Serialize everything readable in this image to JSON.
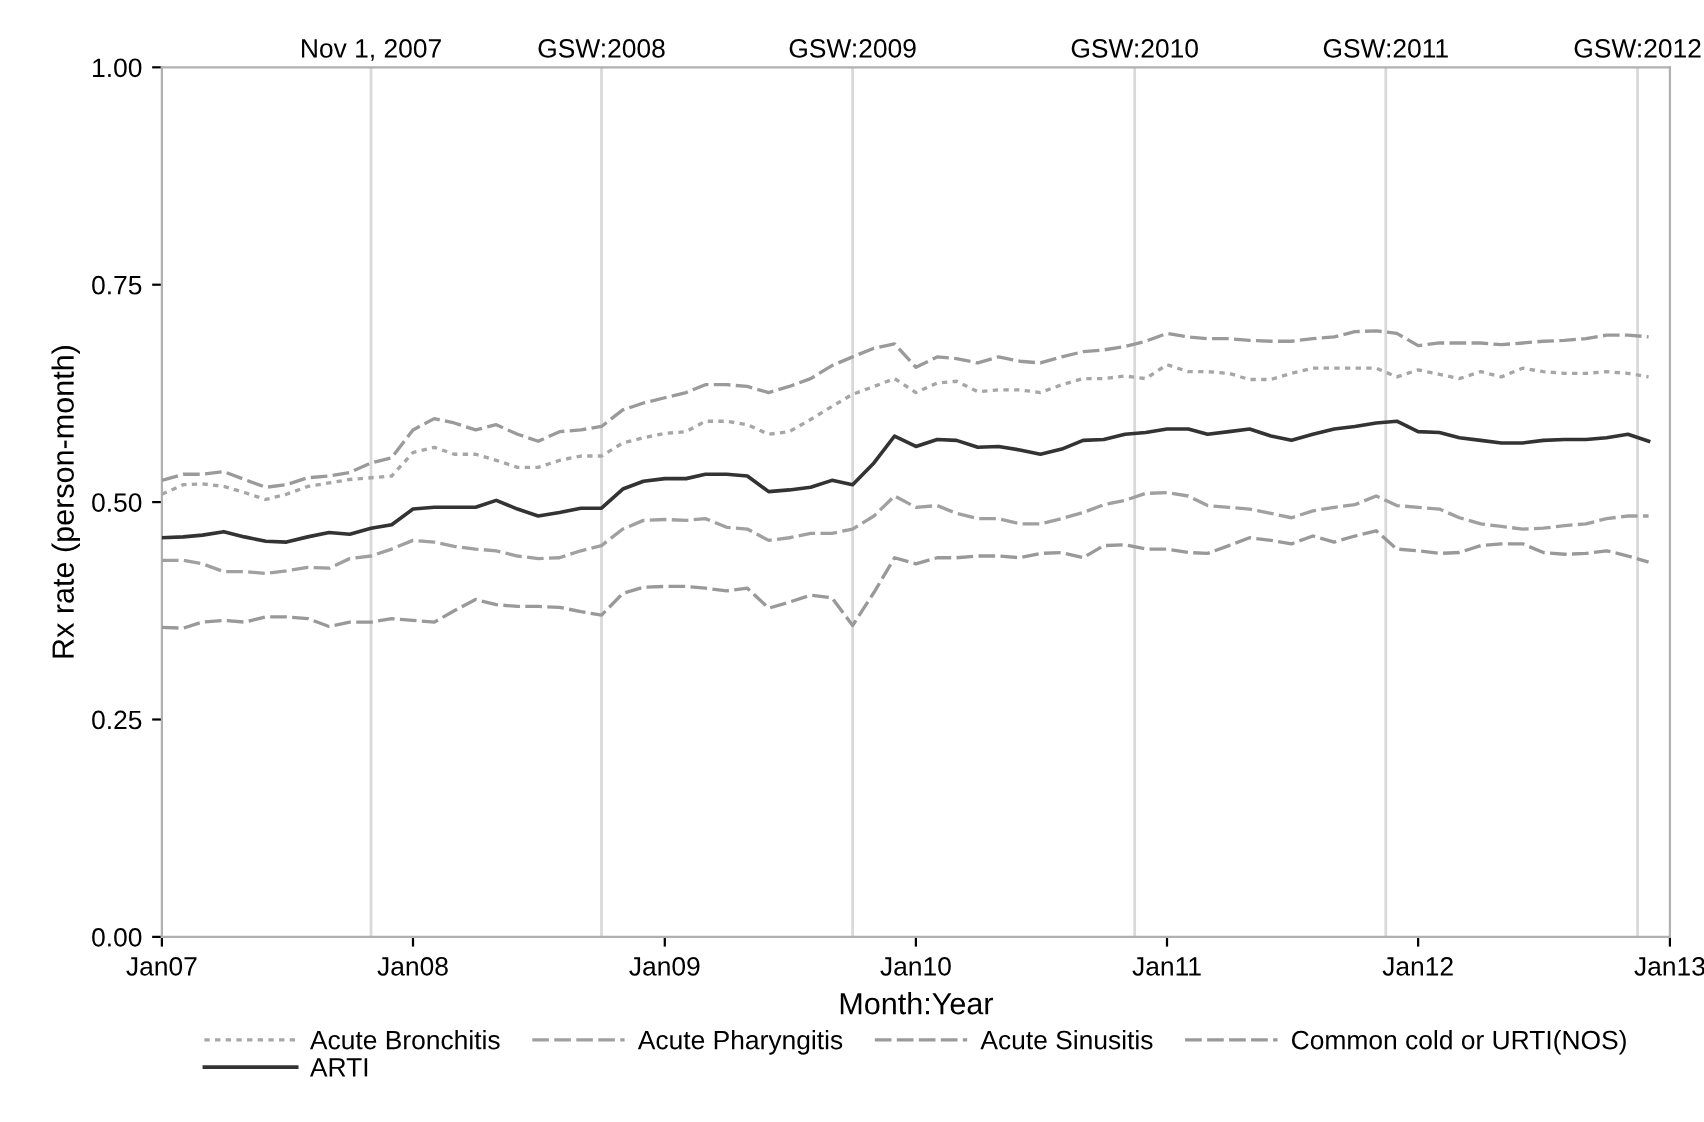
{
  "chart_data": {
    "type": "line",
    "xlabel": "Month:Year",
    "ylabel": "Rx rate (person-month)",
    "x": [
      "2007-01",
      "2007-02",
      "2007-03",
      "2007-04",
      "2007-05",
      "2007-06",
      "2007-07",
      "2007-08",
      "2007-09",
      "2007-10",
      "2007-11",
      "2007-12",
      "2008-01",
      "2008-02",
      "2008-03",
      "2008-04",
      "2008-05",
      "2008-06",
      "2008-07",
      "2008-08",
      "2008-09",
      "2008-10",
      "2008-11",
      "2008-12",
      "2009-01",
      "2009-02",
      "2009-03",
      "2009-04",
      "2009-05",
      "2009-06",
      "2009-07",
      "2009-08",
      "2009-09",
      "2009-10",
      "2009-11",
      "2009-12",
      "2010-01",
      "2010-02",
      "2010-03",
      "2010-04",
      "2010-05",
      "2010-06",
      "2010-07",
      "2010-08",
      "2010-09",
      "2010-10",
      "2010-11",
      "2010-12",
      "2011-01",
      "2011-02",
      "2011-03",
      "2011-04",
      "2011-05",
      "2011-06",
      "2011-07",
      "2011-08",
      "2011-09",
      "2011-10",
      "2011-11",
      "2011-12",
      "2012-01",
      "2012-02",
      "2012-03",
      "2012-04",
      "2012-05",
      "2012-06",
      "2012-07",
      "2012-08",
      "2012-09",
      "2012-10",
      "2012-11",
      "2012-12"
    ],
    "series": [
      {
        "name": "Acute Bronchitis",
        "color": "#a6a6a6",
        "line_style": "dotted",
        "values": [
          0.509,
          0.52,
          0.521,
          0.518,
          0.511,
          0.503,
          0.509,
          0.518,
          0.522,
          0.526,
          0.528,
          0.53,
          0.557,
          0.563,
          0.555,
          0.555,
          0.548,
          0.54,
          0.54,
          0.548,
          0.553,
          0.553,
          0.568,
          0.574,
          0.579,
          0.581,
          0.593,
          0.593,
          0.589,
          0.578,
          0.581,
          0.595,
          0.61,
          0.624,
          0.633,
          0.642,
          0.626,
          0.637,
          0.639,
          0.627,
          0.629,
          0.629,
          0.626,
          0.635,
          0.642,
          0.642,
          0.645,
          0.642,
          0.658,
          0.65,
          0.65,
          0.648,
          0.641,
          0.641,
          0.648,
          0.654,
          0.654,
          0.654,
          0.654,
          0.644,
          0.652,
          0.647,
          0.642,
          0.65,
          0.644,
          0.654,
          0.65,
          0.648,
          0.648,
          0.65,
          0.648,
          0.644
        ]
      },
      {
        "name": "Acute Pharyngitis",
        "color": "#a0a0a0",
        "line_style": "dashed",
        "values": [
          0.433,
          0.433,
          0.429,
          0.42,
          0.42,
          0.418,
          0.421,
          0.425,
          0.424,
          0.435,
          0.438,
          0.446,
          0.456,
          0.454,
          0.449,
          0.446,
          0.444,
          0.438,
          0.435,
          0.436,
          0.444,
          0.45,
          0.469,
          0.479,
          0.48,
          0.479,
          0.481,
          0.471,
          0.469,
          0.456,
          0.459,
          0.464,
          0.464,
          0.469,
          0.484,
          0.507,
          0.494,
          0.496,
          0.487,
          0.481,
          0.481,
          0.475,
          0.475,
          0.481,
          0.488,
          0.497,
          0.502,
          0.51,
          0.511,
          0.507,
          0.496,
          0.494,
          0.492,
          0.487,
          0.482,
          0.49,
          0.494,
          0.497,
          0.507,
          0.496,
          0.494,
          0.492,
          0.482,
          0.475,
          0.472,
          0.469,
          0.47,
          0.473,
          0.475,
          0.481,
          0.484,
          0.484
        ]
      },
      {
        "name": "Acute Sinusitis",
        "color": "#9a9a9a",
        "line_style": "dashed",
        "values": [
          0.525,
          0.532,
          0.532,
          0.535,
          0.526,
          0.517,
          0.52,
          0.528,
          0.53,
          0.534,
          0.545,
          0.551,
          0.583,
          0.596,
          0.591,
          0.583,
          0.589,
          0.578,
          0.57,
          0.581,
          0.583,
          0.587,
          0.606,
          0.614,
          0.62,
          0.626,
          0.635,
          0.635,
          0.633,
          0.626,
          0.633,
          0.642,
          0.657,
          0.667,
          0.677,
          0.682,
          0.655,
          0.667,
          0.665,
          0.66,
          0.667,
          0.662,
          0.66,
          0.667,
          0.673,
          0.675,
          0.679,
          0.685,
          0.694,
          0.69,
          0.688,
          0.688,
          0.686,
          0.685,
          0.685,
          0.688,
          0.69,
          0.696,
          0.697,
          0.694,
          0.68,
          0.683,
          0.683,
          0.683,
          0.681,
          0.683,
          0.685,
          0.686,
          0.688,
          0.692,
          0.692,
          0.69
        ]
      },
      {
        "name": "Common cold or URTI(NOS)",
        "color": "#999999",
        "line_style": "dashed",
        "values": [
          0.356,
          0.355,
          0.362,
          0.364,
          0.362,
          0.368,
          0.368,
          0.366,
          0.357,
          0.362,
          0.362,
          0.366,
          0.364,
          0.362,
          0.375,
          0.388,
          0.382,
          0.38,
          0.38,
          0.379,
          0.374,
          0.37,
          0.395,
          0.402,
          0.403,
          0.403,
          0.401,
          0.398,
          0.401,
          0.378,
          0.385,
          0.393,
          0.39,
          0.358,
          0.396,
          0.436,
          0.429,
          0.436,
          0.436,
          0.438,
          0.438,
          0.436,
          0.441,
          0.442,
          0.436,
          0.45,
          0.451,
          0.446,
          0.446,
          0.442,
          0.441,
          0.45,
          0.459,
          0.456,
          0.452,
          0.461,
          0.454,
          0.461,
          0.467,
          0.446,
          0.444,
          0.441,
          0.442,
          0.45,
          0.452,
          0.452,
          0.442,
          0.44,
          0.441,
          0.444,
          0.438,
          0.431
        ]
      },
      {
        "name": "ARTI",
        "color": "#333333",
        "line_style": "solid",
        "values": [
          0.459,
          0.46,
          0.462,
          0.466,
          0.46,
          0.455,
          0.454,
          0.46,
          0.465,
          0.463,
          0.47,
          0.474,
          0.492,
          0.494,
          0.494,
          0.494,
          0.502,
          0.492,
          0.484,
          0.488,
          0.493,
          0.493,
          0.515,
          0.524,
          0.527,
          0.527,
          0.532,
          0.532,
          0.53,
          0.512,
          0.514,
          0.517,
          0.525,
          0.52,
          0.545,
          0.576,
          0.564,
          0.572,
          0.571,
          0.563,
          0.564,
          0.56,
          0.555,
          0.561,
          0.571,
          0.572,
          0.578,
          0.58,
          0.584,
          0.584,
          0.578,
          0.581,
          0.584,
          0.576,
          0.571,
          0.578,
          0.584,
          0.587,
          0.591,
          0.593,
          0.581,
          0.58,
          0.574,
          0.571,
          0.568,
          0.568,
          0.571,
          0.572,
          0.572,
          0.574,
          0.578,
          0.57
        ]
      }
    ],
    "xlim": [
      "2007-01",
      "2013-01"
    ],
    "xticks": [
      {
        "value": "2007-01",
        "label": "Jan07"
      },
      {
        "value": "2008-01",
        "label": "Jan08"
      },
      {
        "value": "2009-01",
        "label": "Jan09"
      },
      {
        "value": "2010-01",
        "label": "Jan10"
      },
      {
        "value": "2011-01",
        "label": "Jan11"
      },
      {
        "value": "2012-01",
        "label": "Jan12"
      },
      {
        "value": "2013-01",
        "label": "Jan13"
      }
    ],
    "ylim": [
      0,
      1
    ],
    "yticks": [
      {
        "value": 0,
        "label": "0.00"
      },
      {
        "value": 0.25,
        "label": "0.25"
      },
      {
        "value": 0.5,
        "label": "0.50"
      },
      {
        "value": 0.75,
        "label": "0.75"
      },
      {
        "value": 1,
        "label": "1.00"
      }
    ],
    "ref_lines": [
      {
        "axis": "x",
        "value": "2007-11-01",
        "label": "Nov 1, 2007",
        "color": "#d9d9d9"
      },
      {
        "axis": "x",
        "value": "2008-10-01",
        "label": "GSW:2008",
        "color": "#d9d9d9"
      },
      {
        "axis": "x",
        "value": "2009-10-01",
        "label": "GSW:2009",
        "color": "#d9d9d9"
      },
      {
        "axis": "x",
        "value": "2010-11-15",
        "label": "GSW:2010",
        "color": "#d9d9d9"
      },
      {
        "axis": "x",
        "value": "2011-11-15",
        "label": "GSW:2011",
        "color": "#d9d9d9"
      },
      {
        "axis": "x",
        "value": "2012-11-15",
        "label": "GSW:2012",
        "color": "#d9d9d9"
      }
    ],
    "grid": false,
    "legend": "bottom",
    "marker": "none"
  }
}
